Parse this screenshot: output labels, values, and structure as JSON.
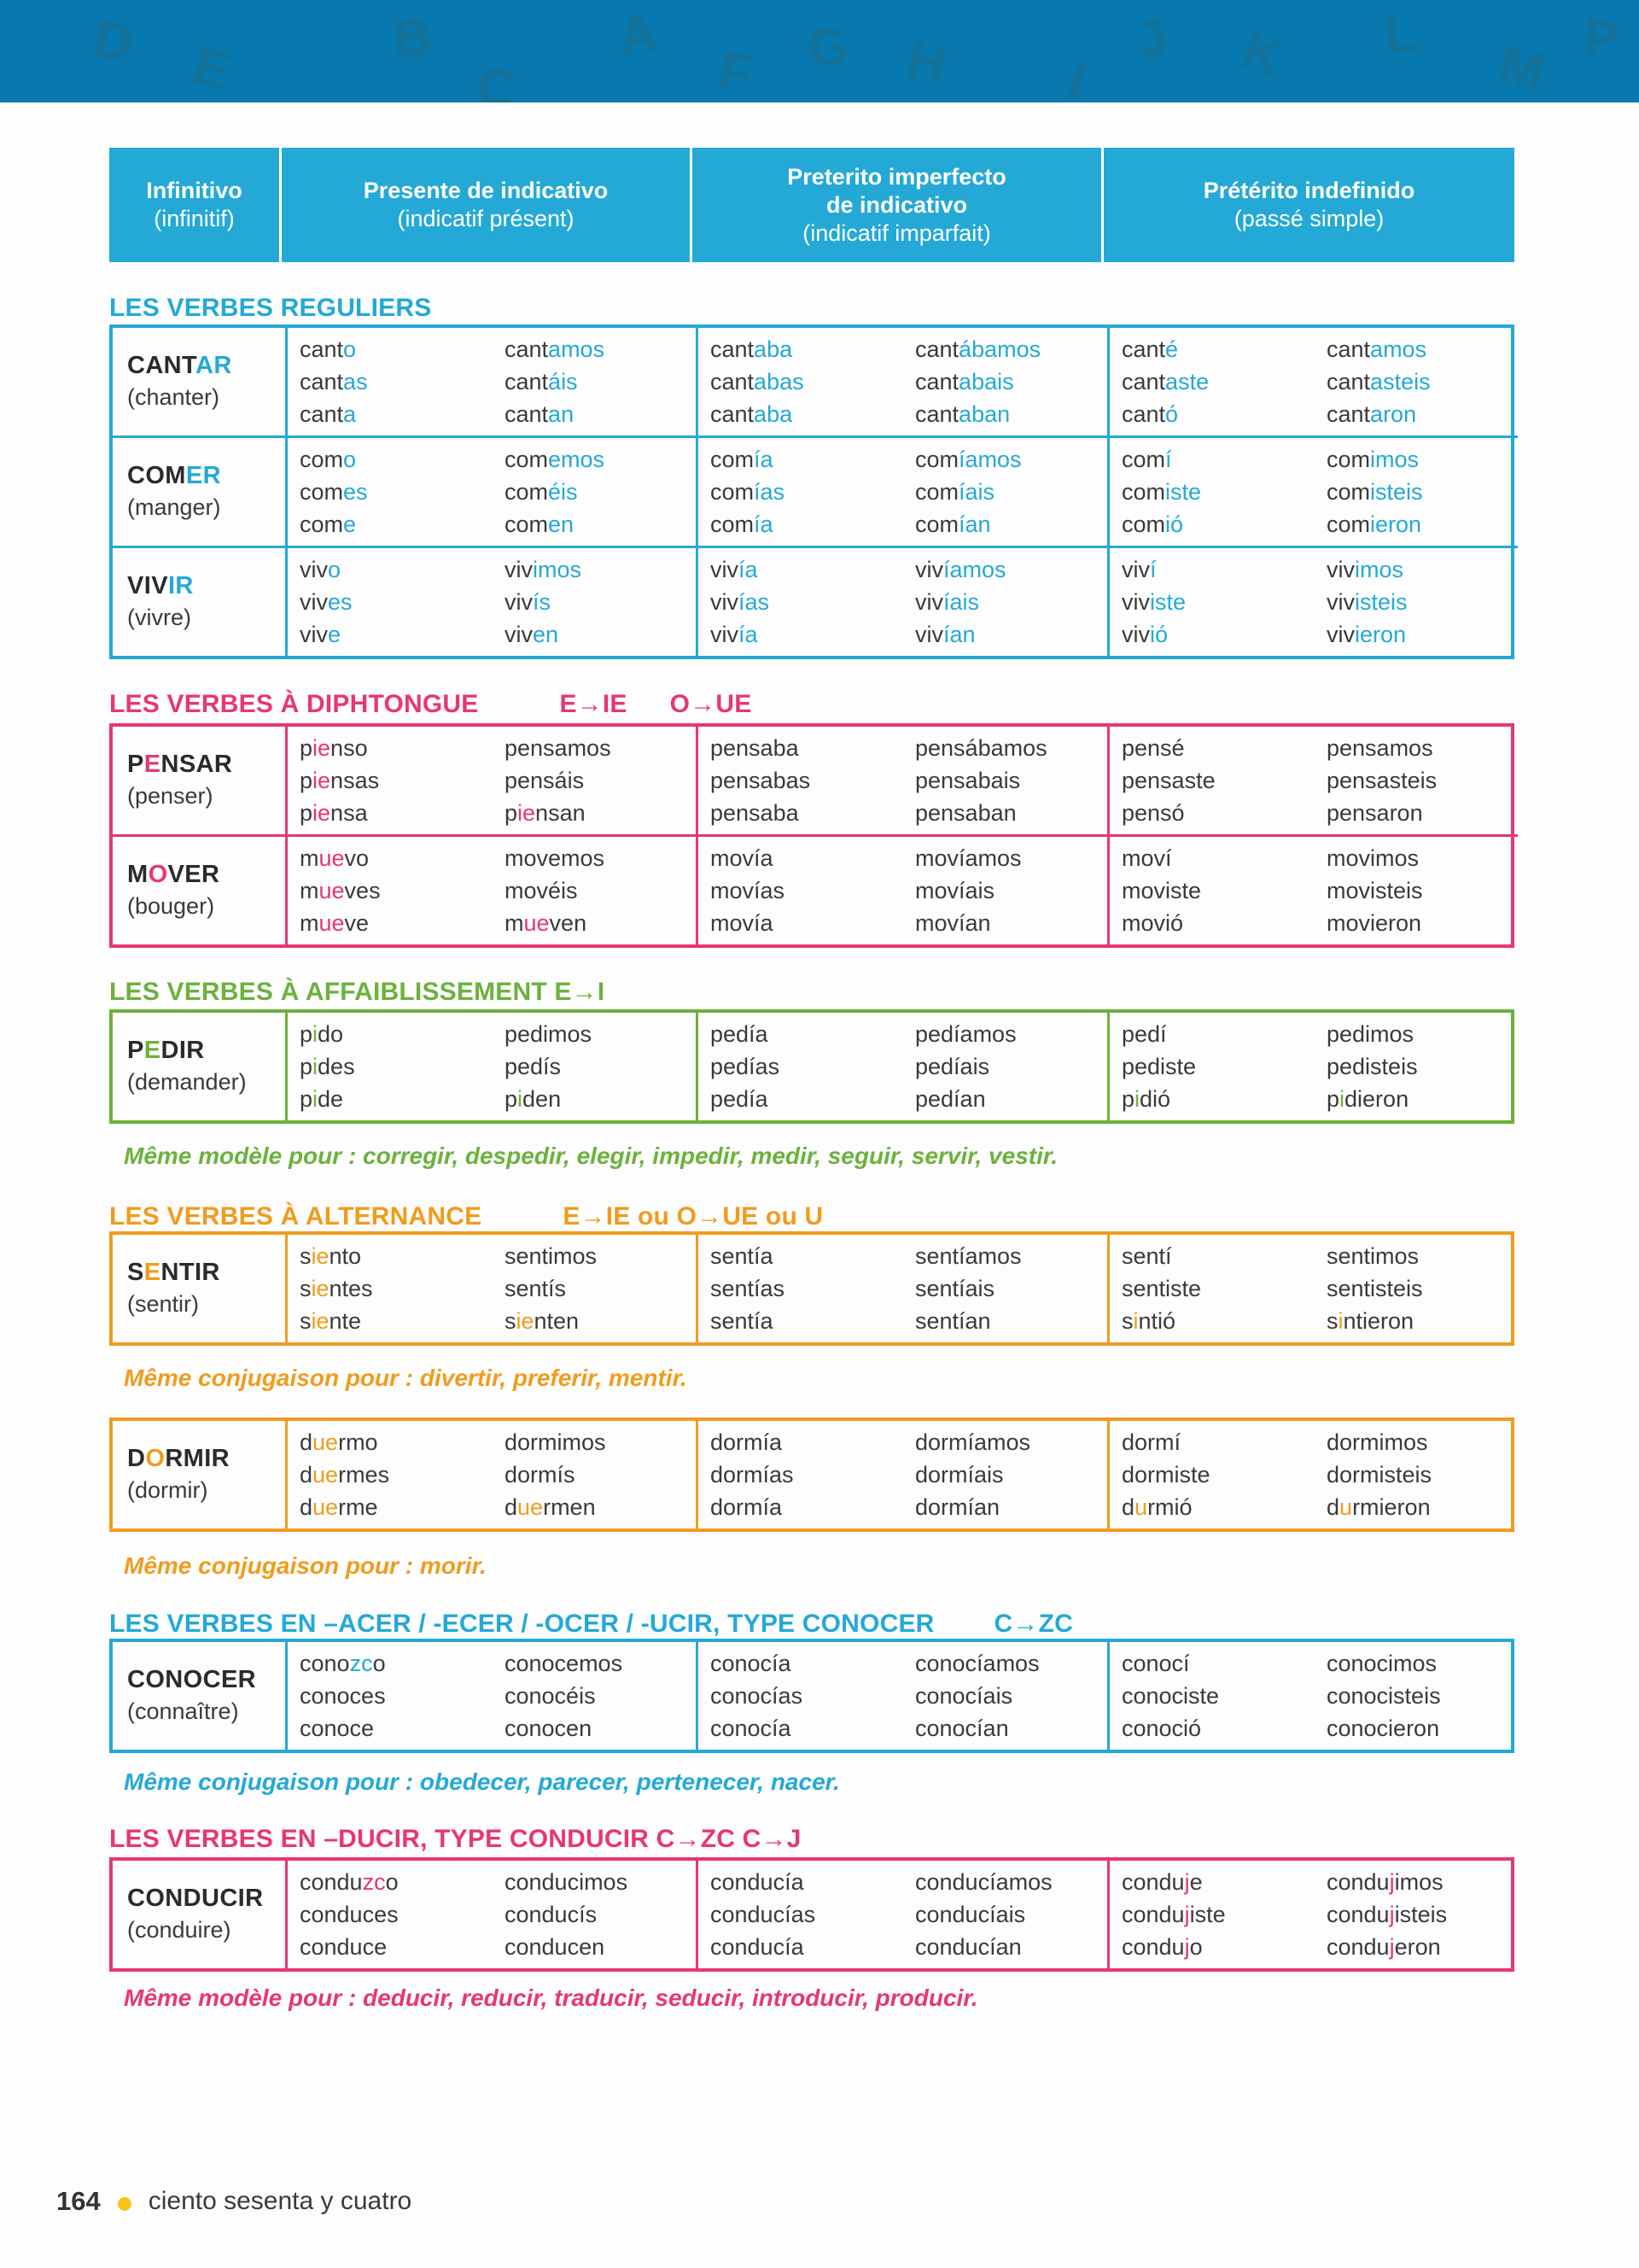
{
  "colors": {
    "banner_bg": "#0779ae",
    "banner_letter": "#147198",
    "cyan": "#24a9d6",
    "pink": "#e6386f",
    "green": "#6bb23d",
    "orange": "#ef9c1e",
    "dark_text": "#3a3a3a",
    "header_text": "#ffffff",
    "footer_dot": "#f9c31c"
  },
  "banner": {
    "letters": [
      "D",
      "E",
      "B",
      "C",
      "A",
      "F",
      "G",
      "H",
      "I",
      "J",
      "K",
      "L",
      "M",
      "P"
    ]
  },
  "header": {
    "cols": [
      {
        "lines": [
          {
            "t": "Infinitivo",
            "bold": true
          },
          {
            "t": "(infinitif)",
            "bold": false
          }
        ]
      },
      {
        "lines": [
          {
            "t": "Presente de indicativo",
            "bold": true
          },
          {
            "t": "(indicatif présent)",
            "bold": false
          }
        ]
      },
      {
        "lines": [
          {
            "t": "Preterito imperfecto",
            "bold": true
          },
          {
            "t": "de indicativo",
            "bold": true
          },
          {
            "t": "(indicatif imparfait)",
            "bold": false
          }
        ]
      },
      {
        "lines": [
          {
            "t": "Prétérito indefinido",
            "bold": true
          },
          {
            "t": "(passé simple)",
            "bold": false
          }
        ]
      }
    ]
  },
  "sections": [
    {
      "kind": "title",
      "id": "reguliers",
      "color": "cyan",
      "main": "LES VERBES REGULIERS",
      "extras": []
    },
    {
      "kind": "table",
      "id": "reguliers-table",
      "color": "cyan",
      "rows": [
        {
          "name": "CANT«AR»",
          "trans": "(chanter)",
          "cols": [
            [
              [
                "cant«o»",
                "cant«as»",
                "cant«a»"
              ],
              [
                "cant«amos»",
                "cant«áis»",
                "cant«an»"
              ]
            ],
            [
              [
                "cant«aba»",
                "cant«abas»",
                "cant«aba»"
              ],
              [
                "cant«ábamos»",
                "cant«abais»",
                "cant«aban»"
              ]
            ],
            [
              [
                "cant«é»",
                "cant«aste»",
                "cant«ó»"
              ],
              [
                "cant«amos»",
                "cant«asteis»",
                "cant«aron»"
              ]
            ]
          ]
        },
        {
          "name": "COM«ER»",
          "trans": "(manger)",
          "cols": [
            [
              [
                "com«o»",
                "com«es»",
                "com«e»"
              ],
              [
                "com«emos»",
                "com«éis»",
                "com«en»"
              ]
            ],
            [
              [
                "com«ía»",
                "com«ías»",
                "com«ía»"
              ],
              [
                "com«íamos»",
                "com«íais»",
                "com«ían»"
              ]
            ],
            [
              [
                "com«í»",
                "com«iste»",
                "com«ió»"
              ],
              [
                "com«imos»",
                "com«isteis»",
                "com«ieron»"
              ]
            ]
          ]
        },
        {
          "name": "VIV«IR»",
          "trans": "(vivre)",
          "cols": [
            [
              [
                "viv«o»",
                "viv«es»",
                "viv«e»"
              ],
              [
                "viv«imos»",
                "viv«ís»",
                "viv«en»"
              ]
            ],
            [
              [
                "viv«ía»",
                "viv«ías»",
                "viv«ía»"
              ],
              [
                "viv«íamos»",
                "viv«íais»",
                "viv«ían»"
              ]
            ],
            [
              [
                "viv«í»",
                "viv«iste»",
                "viv«ió»"
              ],
              [
                "viv«imos»",
                "viv«isteis»",
                "viv«ieron»"
              ]
            ]
          ]
        }
      ]
    },
    {
      "kind": "title",
      "id": "diphtongue",
      "color": "pink",
      "main": "LES VERBES À DIPHTONGUE",
      "extras": [
        "E→IE",
        "O→UE"
      ]
    },
    {
      "kind": "table",
      "id": "diphtongue-table",
      "color": "pink",
      "rows": [
        {
          "name": "P«E»NSAR",
          "trans": "(penser)",
          "cols": [
            [
              [
                "p«ie»nso",
                "p«ie»nsas",
                "p«ie»nsa"
              ],
              [
                "pensamos",
                "pensáis",
                "p«ie»nsan"
              ]
            ],
            [
              [
                "pensaba",
                "pensabas",
                "pensaba"
              ],
              [
                "pensábamos",
                "pensabais",
                "pensaban"
              ]
            ],
            [
              [
                "pensé",
                "pensaste",
                "pensó"
              ],
              [
                "pensamos",
                "pensasteis",
                "pensaron"
              ]
            ]
          ]
        },
        {
          "name": "M«O»VER",
          "trans": "(bouger)",
          "cols": [
            [
              [
                "m«ue»vo",
                "m«ue»ves",
                "m«ue»ve"
              ],
              [
                "movemos",
                "movéis",
                "m«ue»ven"
              ]
            ],
            [
              [
                "movía",
                "movías",
                "movía"
              ],
              [
                "movíamos",
                "movíais",
                "movían"
              ]
            ],
            [
              [
                "moví",
                "moviste",
                "movió"
              ],
              [
                "movimos",
                "movisteis",
                "movieron"
              ]
            ]
          ]
        }
      ]
    },
    {
      "kind": "title",
      "id": "affaiblissement",
      "color": "green",
      "main": "LES VERBES À AFFAIBLISSEMENT E→I",
      "extras": []
    },
    {
      "kind": "table",
      "id": "pedir-table",
      "color": "green",
      "rows": [
        {
          "name": "P«E»DIR",
          "trans": "(demander)",
          "cols": [
            [
              [
                "p«i»do",
                "p«i»des",
                "p«i»de"
              ],
              [
                "pedimos",
                "pedís",
                "p«i»den"
              ]
            ],
            [
              [
                "pedía",
                "pedías",
                "pedía"
              ],
              [
                "pedíamos",
                "pedíais",
                "pedían"
              ]
            ],
            [
              [
                "pedí",
                "pediste",
                "p«i»dió"
              ],
              [
                "pedimos",
                "pedisteis",
                "p«i»dieron"
              ]
            ]
          ]
        }
      ]
    },
    {
      "kind": "note",
      "id": "note-pedir",
      "color": "green",
      "text": "Même modèle pour : corregir, despedir, elegir, impedir, medir, seguir, servir, vestir."
    },
    {
      "kind": "title",
      "id": "alternance",
      "color": "orange",
      "main": "LES VERBES À ALTERNANCE",
      "extras": [
        "E→IE ou O→UE ou U"
      ]
    },
    {
      "kind": "table",
      "id": "sentir-table",
      "color": "orange",
      "rows": [
        {
          "name": "S«E»NTIR",
          "trans": "(sentir)",
          "cols": [
            [
              [
                "s«ie»nto",
                "s«ie»ntes",
                "s«ie»nte"
              ],
              [
                "sentimos",
                "sentís",
                "s«ie»nten"
              ]
            ],
            [
              [
                "sentía",
                "sentías",
                "sentía"
              ],
              [
                "sentíamos",
                "sentíais",
                "sentían"
              ]
            ],
            [
              [
                "sentí",
                "sentiste",
                "s«i»ntió"
              ],
              [
                "sentimos",
                "sentisteis",
                "s«i»ntieron"
              ]
            ]
          ]
        }
      ]
    },
    {
      "kind": "note",
      "id": "note-sentir",
      "color": "orange",
      "text": "Même conjugaison pour : divertir, preferir, mentir."
    },
    {
      "kind": "table",
      "id": "dormir-table",
      "color": "orange",
      "rows": [
        {
          "name": "D«O»RMIR",
          "trans": "(dormir)",
          "cols": [
            [
              [
                "d«ue»rmo",
                "d«ue»rmes",
                "d«ue»rme"
              ],
              [
                "dormimos",
                "dormís",
                "d«ue»rmen"
              ]
            ],
            [
              [
                "dormía",
                "dormías",
                "dormía"
              ],
              [
                "dormíamos",
                "dormíais",
                "dormían"
              ]
            ],
            [
              [
                "dormí",
                "dormiste",
                "d«u»rmió"
              ],
              [
                "dormimos",
                "dormisteis",
                "d«u»rmieron"
              ]
            ]
          ]
        }
      ]
    },
    {
      "kind": "note",
      "id": "note-dormir",
      "color": "orange",
      "text": "Même conjugaison pour : morir."
    },
    {
      "kind": "title",
      "id": "acer",
      "color": "cyan",
      "main": "LES VERBES EN –ACER / -ECER / -OCER / -UCIR, TYPE CONOCER",
      "extras": [
        "C→ZC"
      ]
    },
    {
      "kind": "table",
      "id": "conocer-table",
      "color": "cyan",
      "rows": [
        {
          "name": "CONOCER",
          "trans": "(connaître)",
          "cols": [
            [
              [
                "cono«zc»o",
                "conoces",
                "conoce"
              ],
              [
                "conocemos",
                "conocéis",
                "conocen"
              ]
            ],
            [
              [
                "conocía",
                "conocías",
                "conocía"
              ],
              [
                "conocíamos",
                "conocíais",
                "conocían"
              ]
            ],
            [
              [
                "conocí",
                "conociste",
                "conoció"
              ],
              [
                "conocimos",
                "conocisteis",
                "conocieron"
              ]
            ]
          ]
        }
      ]
    },
    {
      "kind": "note",
      "id": "note-conocer",
      "color": "cyan",
      "text": "Même conjugaison pour : obedecer, parecer, pertenecer, nacer."
    },
    {
      "kind": "title",
      "id": "ducir",
      "color": "pink",
      "main": "LES VERBES EN –DUCIR, TYPE CONDUCIR C→ZC C→J",
      "extras": []
    },
    {
      "kind": "table",
      "id": "conducir-table",
      "color": "pink",
      "rows": [
        {
          "name": "CONDUCIR",
          "trans": "(conduire)",
          "cols": [
            [
              [
                "condu«zc»o",
                "conduces",
                "conduce"
              ],
              [
                "conducimos",
                "conducís",
                "conducen"
              ]
            ],
            [
              [
                "conducía",
                "conducías",
                "conducía"
              ],
              [
                "conducíamos",
                "conducíais",
                "conducían"
              ]
            ],
            [
              [
                "condu«j»e",
                "condu«j»iste",
                "condu«j»o"
              ],
              [
                "condu«j»imos",
                "condu«j»isteis",
                "condu«j»eron"
              ]
            ]
          ]
        }
      ]
    },
    {
      "kind": "note",
      "id": "note-conducir",
      "color": "pink",
      "text": "Même modèle pour : deducir, reducir, traducir, seducir, introducir, producir."
    }
  ],
  "footer": {
    "page_number": "164",
    "text": "ciento sesenta y cuatro"
  }
}
